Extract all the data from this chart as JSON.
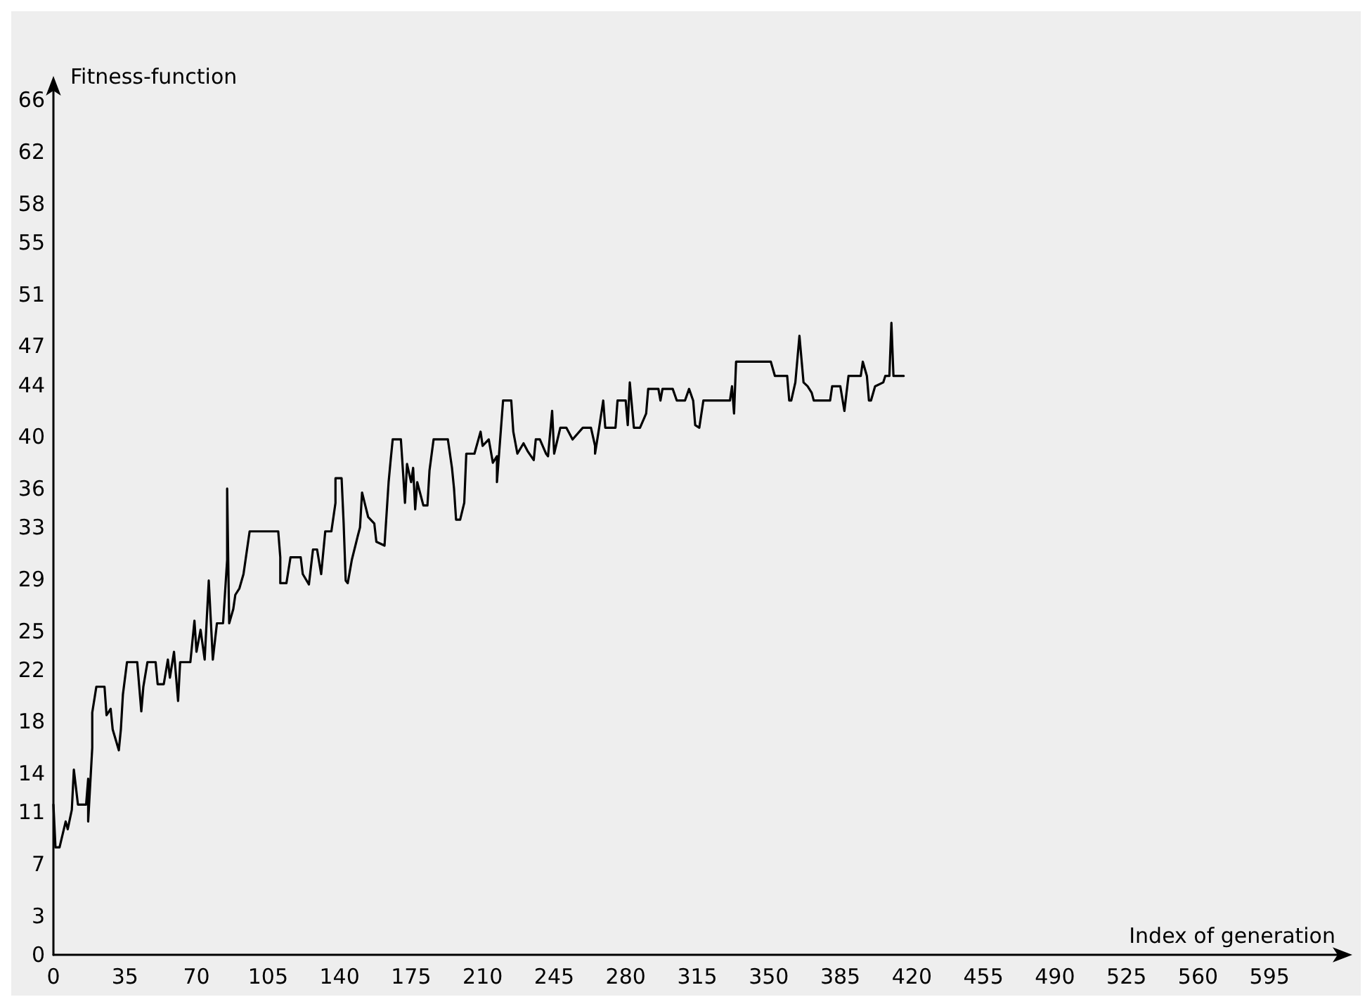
{
  "chart_data": {
    "type": "line",
    "xlabel": "Index of generation",
    "ylabel": "Fitness-function",
    "xlim": [
      0,
      630
    ],
    "xticks": [
      0,
      35,
      70,
      105,
      140,
      175,
      210,
      245,
      280,
      315,
      350,
      385,
      420,
      455,
      490,
      525,
      560,
      595
    ],
    "ylim": [
      0,
      67
    ],
    "yticks": [
      0,
      3,
      7,
      11,
      14,
      18,
      22,
      25,
      29,
      33,
      36,
      40,
      44,
      47,
      51,
      55,
      58,
      62,
      66
    ],
    "grid": false,
    "marker": "none",
    "line_style": "solid",
    "series": [
      {
        "color": "#000000",
        "x": [
          0,
          1,
          3,
          6,
          7,
          9,
          10,
          12,
          16,
          17,
          17,
          19,
          19,
          21,
          25,
          26,
          28,
          29,
          32,
          33,
          34,
          36,
          41,
          43,
          44,
          46,
          50,
          51,
          54,
          56,
          57,
          59,
          61,
          62,
          67,
          69,
          70,
          72,
          74,
          76,
          78,
          80,
          83,
          85,
          85,
          86,
          88,
          89,
          91,
          93,
          94,
          96,
          110,
          111,
          111,
          114,
          116,
          121,
          122,
          125,
          127,
          129,
          131,
          133,
          136,
          138,
          138,
          141,
          142,
          143,
          144,
          146,
          149,
          150,
          151,
          154,
          157,
          158,
          162,
          164,
          165,
          166,
          170,
          171,
          172,
          173,
          175,
          176,
          177,
          178,
          181,
          183,
          184,
          186,
          193,
          195,
          196,
          197,
          199,
          201,
          202,
          206,
          209,
          210,
          213,
          215,
          217,
          217,
          219,
          220,
          224,
          225,
          227,
          230,
          232,
          235,
          236,
          238,
          241,
          242,
          244,
          245,
          248,
          251,
          254,
          259,
          263,
          265,
          265,
          267,
          269,
          270,
          275,
          276,
          280,
          281,
          282,
          284,
          287,
          290,
          291,
          296,
          297,
          298,
          303,
          305,
          309,
          311,
          313,
          314,
          316,
          318,
          331,
          332,
          333,
          334,
          351,
          353,
          359,
          360,
          361,
          363,
          365,
          367,
          369,
          371,
          372,
          380,
          381,
          385,
          387,
          389,
          395,
          396,
          398,
          399,
          400,
          402,
          406,
          407,
          409,
          410,
          411,
          416
        ],
        "values": [
          11.6,
          8.3,
          8.3,
          10.3,
          9.7,
          11.2,
          14.3,
          11.6,
          11.6,
          13.6,
          10.3,
          16.0,
          18.7,
          20.7,
          20.7,
          18.5,
          19.0,
          17.4,
          15.8,
          17.4,
          20.1,
          22.6,
          22.6,
          18.8,
          20.7,
          22.6,
          22.6,
          20.9,
          20.9,
          22.8,
          21.4,
          23.4,
          19.6,
          22.6,
          22.6,
          25.8,
          23.4,
          25.1,
          22.8,
          28.9,
          22.8,
          25.6,
          25.6,
          30.5,
          36.0,
          25.6,
          26.7,
          27.8,
          28.3,
          29.4,
          30.5,
          32.7,
          32.7,
          30.7,
          28.7,
          28.7,
          30.7,
          30.7,
          29.4,
          28.6,
          31.3,
          31.3,
          29.4,
          32.7,
          32.7,
          34.9,
          36.8,
          36.8,
          33.3,
          28.9,
          28.7,
          30.5,
          32.4,
          33.0,
          35.7,
          33.8,
          33.3,
          31.9,
          31.6,
          36.5,
          38.2,
          39.8,
          39.8,
          37.4,
          34.9,
          37.9,
          36.5,
          37.6,
          34.4,
          36.5,
          34.7,
          34.7,
          37.4,
          39.8,
          39.8,
          37.6,
          36.0,
          33.6,
          33.6,
          34.9,
          38.7,
          38.7,
          40.4,
          39.3,
          39.8,
          38.0,
          38.5,
          36.5,
          40.7,
          42.8,
          42.8,
          40.4,
          38.7,
          39.5,
          38.9,
          38.2,
          39.8,
          39.8,
          38.7,
          38.5,
          42.0,
          38.7,
          40.7,
          40.7,
          39.8,
          40.7,
          40.7,
          39.3,
          38.7,
          40.7,
          42.8,
          40.7,
          40.7,
          42.8,
          42.8,
          40.9,
          44.2,
          40.7,
          40.7,
          41.8,
          43.7,
          43.7,
          42.8,
          43.7,
          43.7,
          42.8,
          42.8,
          43.7,
          42.8,
          40.9,
          40.7,
          42.8,
          42.8,
          43.9,
          41.8,
          45.8,
          45.8,
          44.7,
          44.7,
          42.8,
          42.8,
          44.2,
          47.8,
          44.2,
          43.9,
          43.4,
          42.8,
          42.8,
          43.9,
          43.9,
          42.0,
          44.7,
          44.7,
          45.8,
          44.7,
          42.8,
          42.8,
          43.9,
          44.2,
          44.7,
          44.7,
          48.8,
          44.7,
          44.7
        ]
      }
    ]
  }
}
